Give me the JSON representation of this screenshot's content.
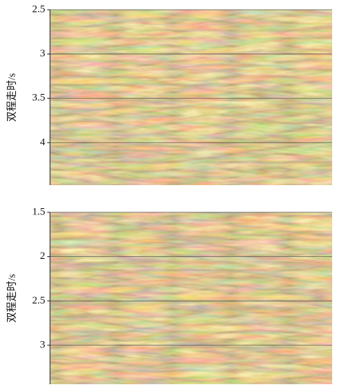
{
  "chart_data": [
    {
      "type": "image",
      "ylabel": "双程走时/s",
      "ylim": [
        2.5,
        4.48
      ],
      "yticks": [
        2.5,
        3.0,
        3.5,
        4.0
      ],
      "grid": true,
      "inverted": true
    },
    {
      "type": "image",
      "ylabel": "双程走时/s",
      "ylim": [
        1.5,
        3.44
      ],
      "yticks": [
        1.5,
        2.0,
        2.5,
        3.0
      ],
      "grid": true,
      "inverted": true
    }
  ]
}
